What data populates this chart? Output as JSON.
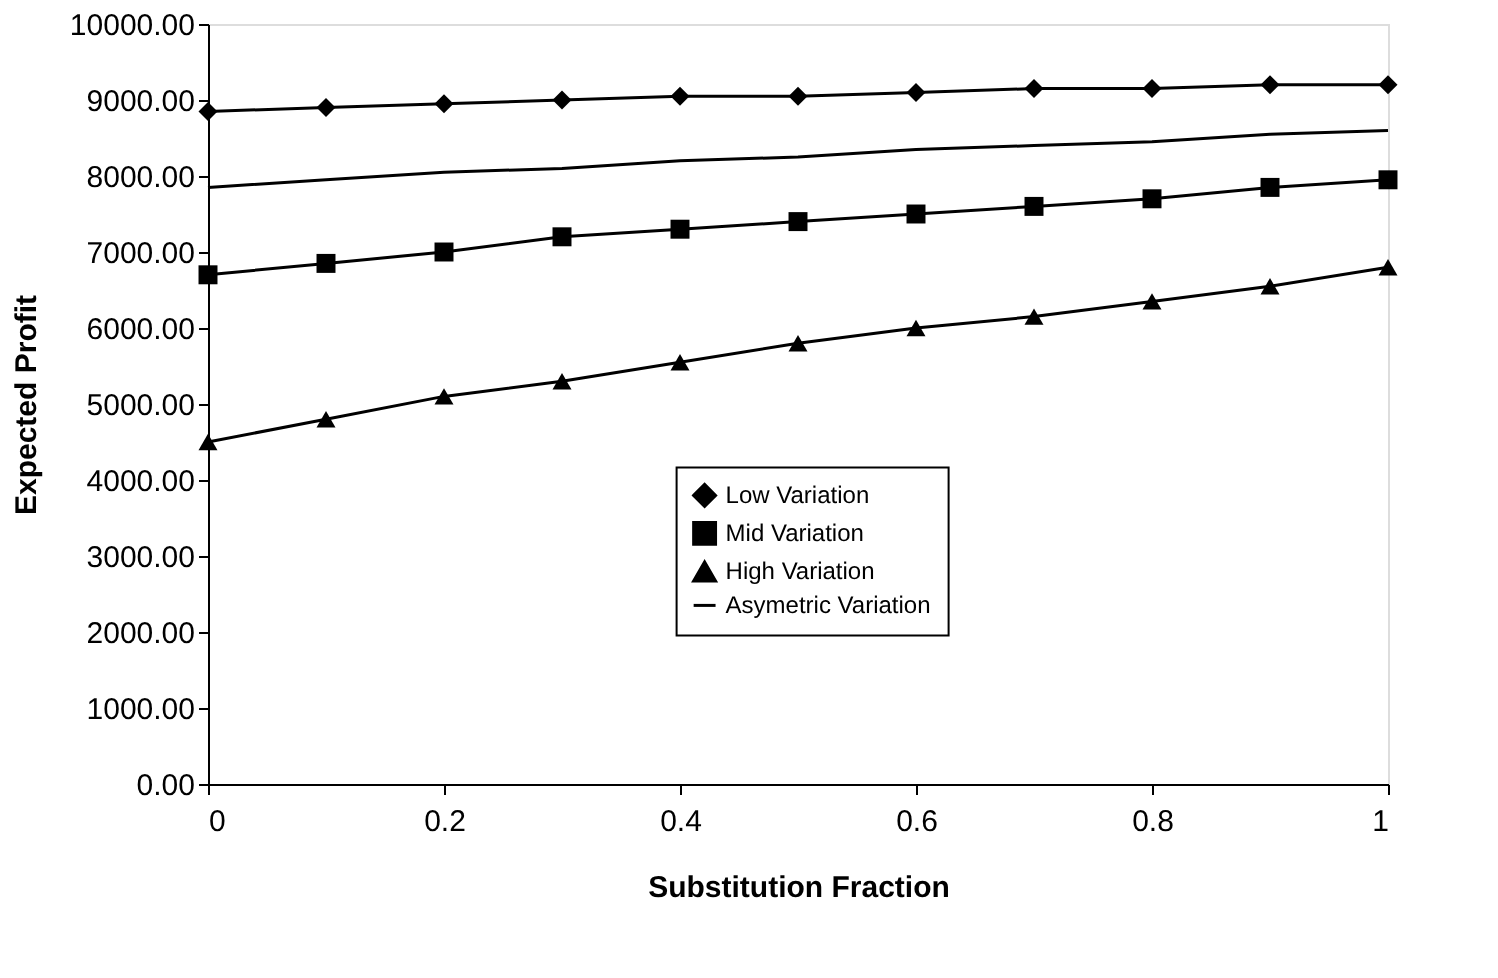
{
  "chart_data": {
    "type": "line",
    "xlabel": "Substitution Fraction",
    "ylabel": "Expected Profit",
    "x": [
      0,
      0.1,
      0.2,
      0.3,
      0.4,
      0.5,
      0.6,
      0.7,
      0.8,
      0.9,
      1
    ],
    "series": [
      {
        "name": "Low Variation",
        "color": "#000000",
        "marker": "diamond",
        "values": [
          8850,
          8900,
          8950,
          9000,
          9050,
          9050,
          9100,
          9150,
          9150,
          9200,
          9200
        ]
      },
      {
        "name": "Mid Variation",
        "color": "#000000",
        "marker": "square",
        "values": [
          6700,
          6850,
          7000,
          7200,
          7300,
          7400,
          7500,
          7600,
          7700,
          7850,
          7950
        ]
      },
      {
        "name": "High Variation",
        "color": "#000000",
        "marker": "triangle",
        "values": [
          4500,
          4800,
          5100,
          5300,
          5550,
          5800,
          6000,
          6150,
          6350,
          6550,
          6800
        ]
      },
      {
        "name": "Asymetric Variation",
        "color": "#000000",
        "marker": "none",
        "values": [
          7850,
          7950,
          8050,
          8100,
          8200,
          8250,
          8350,
          8400,
          8450,
          8550,
          8600
        ]
      }
    ],
    "xlim": [
      0,
      1
    ],
    "xticks": [
      0,
      0.2,
      0.4,
      0.6,
      0.8,
      1
    ],
    "ylim": [
      0,
      10000
    ],
    "yticks": [
      {
        "value": 0,
        "label": "0.00"
      },
      {
        "value": 1000,
        "label": "1000.00"
      },
      {
        "value": 2000,
        "label": "2000.00"
      },
      {
        "value": 3000,
        "label": "3000.00"
      },
      {
        "value": 4000,
        "label": "4000.00"
      },
      {
        "value": 5000,
        "label": "5000.00"
      },
      {
        "value": 6000,
        "label": "6000.00"
      },
      {
        "value": 7000,
        "label": "7000.00"
      },
      {
        "value": 8000,
        "label": "8000.00"
      },
      {
        "value": 9000,
        "label": "9000.00"
      },
      {
        "value": 10000,
        "label": "10000.00"
      }
    ],
    "grid": false,
    "legend": "center right",
    "line_style": "solid"
  }
}
